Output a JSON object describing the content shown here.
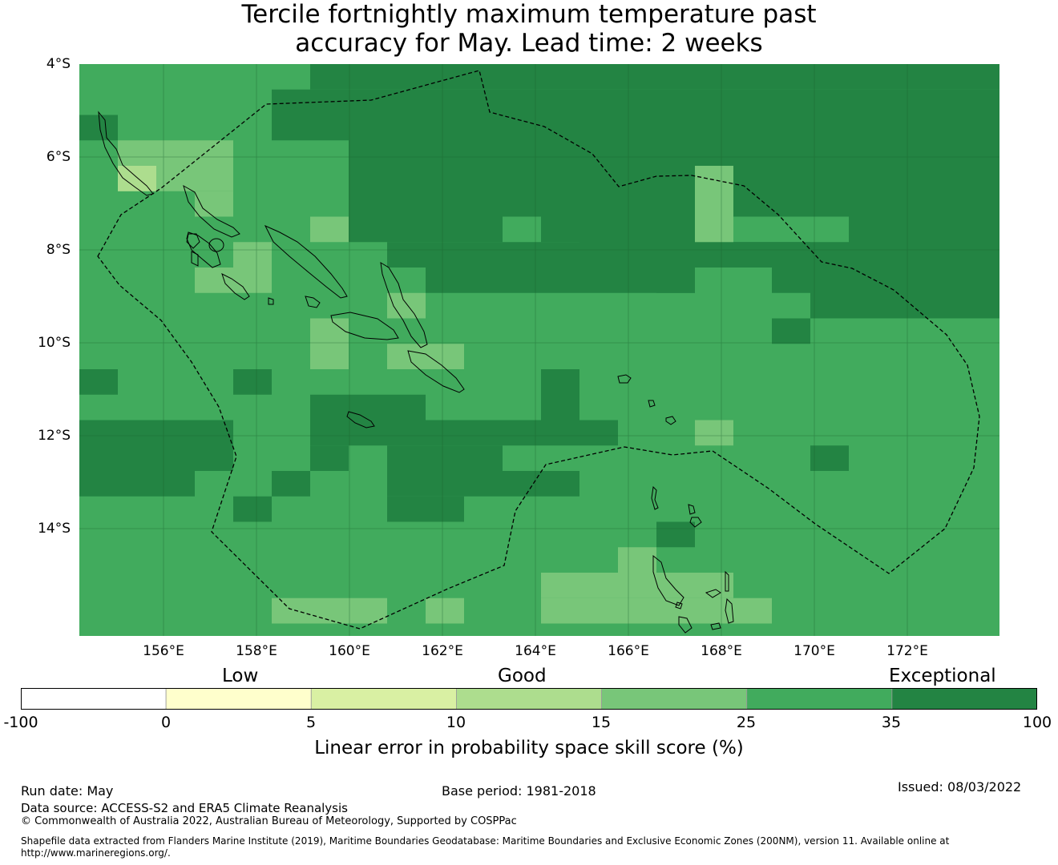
{
  "title": {
    "line1": "Tercile fortnightly maximum temperature past",
    "line2": "accuracy for May. Lead time: 2 weeks"
  },
  "axes": {
    "lat_labels": [
      "4°S",
      "6°S",
      "8°S",
      "10°S",
      "12°S",
      "14°S"
    ],
    "lon_labels": [
      "156°E",
      "158°E",
      "160°E",
      "162°E",
      "164°E",
      "166°E",
      "168°E",
      "170°E",
      "172°E"
    ]
  },
  "map_data": {
    "extent": {
      "lon_min": 154.2,
      "lon_max": 174.0,
      "lat_min": -16.3,
      "lat_max": -4.0
    },
    "cell_size_deg": 0.83,
    "colors": {
      "lt0": "#ffffff",
      "0-5": "#ffffcc",
      "5-10": "#d9f0a3",
      "10-15": "#addd8e",
      "15-25": "#78c679",
      "25-35": "#41ab5d",
      "35-100": "#238443"
    },
    "eez_boundaries": [
      "Solomon Islands EEZ",
      "Vanuatu EEZ"
    ],
    "grid": "on"
  },
  "legend": {
    "categories": [
      "Low",
      "Good",
      "Exceptional"
    ],
    "ticks": [
      "-100",
      "0",
      "5",
      "10",
      "15",
      "25",
      "35",
      "100"
    ],
    "bins": [
      {
        "range": "-100 to 0",
        "color": "#ffffff"
      },
      {
        "range": "0 to 5",
        "color": "#ffffcc"
      },
      {
        "range": "5 to 10",
        "color": "#d9f0a3"
      },
      {
        "range": "10 to 15",
        "color": "#addd8e"
      },
      {
        "range": "15 to 25",
        "color": "#78c679"
      },
      {
        "range": "25 to 35",
        "color": "#41ab5d"
      },
      {
        "range": "35 to 100",
        "color": "#238443"
      }
    ],
    "title": "Linear error in probability space skill score (%)"
  },
  "footer": {
    "run_date": "Run date: May",
    "base_period": "Base period: 1981-2018",
    "issued": "Issued: 08/03/2022",
    "data_source": "Data source: ACCESS-S2 and ERA5 Climate Reanalysis",
    "copyright": "© Commonwealth of Australia 2022, Australian Bureau of Meteorology, Supported by COSPPac",
    "shapefile_line1": "Shapefile data extracted from Flanders Marine Institute (2019), Maritime Boundaries Geodatabase: Maritime Boundaries and Exclusive Economic Zones (200NM), version 11. Available online at",
    "shapefile_line2": "http://www.marineregions.org/."
  }
}
